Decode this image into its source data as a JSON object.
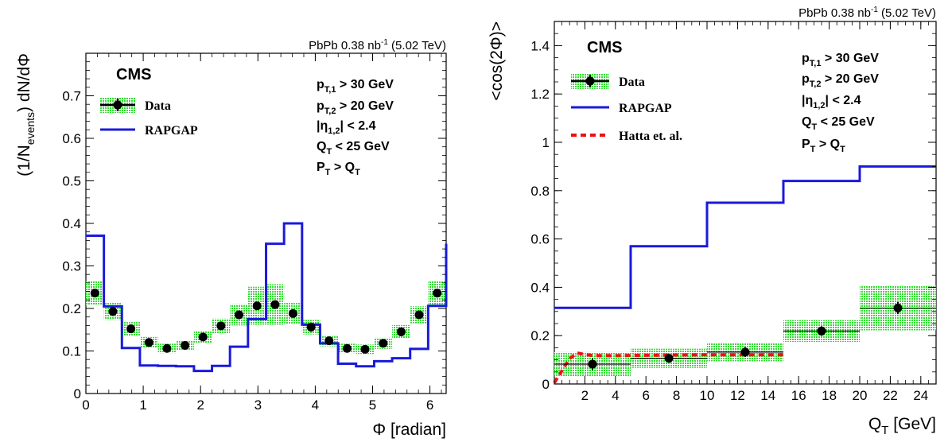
{
  "colors": {
    "data": "#000000",
    "band": "#33dd33",
    "rapgap": "#1a1adb",
    "hatta": "#ee1111"
  },
  "chart_data": [
    {
      "type": "line",
      "title": "PbPb 0.38 nb⁻¹ (5.02 TeV)",
      "label_experiment": "CMS",
      "xlabel": "Φ [radian]",
      "ylabel": "(1/N_events) dN/dΦ",
      "xlim": [
        0,
        6.283
      ],
      "ylim": [
        0,
        0.8
      ],
      "xticks": [
        "0",
        "1",
        "2",
        "3",
        "4",
        "5",
        "6"
      ],
      "yticks": [
        "0",
        "0.1",
        "0.2",
        "0.3",
        "0.4",
        "0.5",
        "0.6",
        "0.7"
      ],
      "cuts": [
        "p_T,1 > 30 GeV",
        "p_T,2 > 20 GeV",
        "|η_1,2| < 2.4",
        "Q_T < 25 GeV",
        "P_T > Q_T"
      ],
      "legend": [
        {
          "name": "Data",
          "style": "points-with-band"
        },
        {
          "name": "RAPGAP",
          "style": "blue-line"
        }
      ],
      "data": {
        "x": [
          0.157,
          0.471,
          0.785,
          1.1,
          1.414,
          1.728,
          2.042,
          2.356,
          2.67,
          2.985,
          3.299,
          3.613,
          3.927,
          4.241,
          4.555,
          4.869,
          5.184,
          5.498,
          5.812,
          6.126
        ],
        "y": [
          0.236,
          0.193,
          0.152,
          0.12,
          0.106,
          0.113,
          0.133,
          0.159,
          0.185,
          0.206,
          0.209,
          0.188,
          0.156,
          0.124,
          0.106,
          0.104,
          0.118,
          0.145,
          0.185,
          0.236
        ],
        "band": [
          0.028,
          0.02,
          0.016,
          0.013,
          0.011,
          0.012,
          0.014,
          0.017,
          0.025,
          0.045,
          0.048,
          0.025,
          0.017,
          0.013,
          0.011,
          0.011,
          0.013,
          0.016,
          0.02,
          0.028
        ]
      },
      "rapgap": {
        "edges": [
          0,
          0.314,
          0.628,
          0.942,
          1.257,
          1.571,
          1.885,
          2.199,
          2.513,
          2.827,
          3.142,
          3.456,
          3.77,
          4.084,
          4.398,
          4.712,
          5.027,
          5.341,
          5.655,
          5.969,
          6.283
        ],
        "values": [
          0.371,
          0.205,
          0.107,
          0.066,
          0.065,
          0.064,
          0.053,
          0.065,
          0.11,
          0.175,
          0.352,
          0.4,
          0.162,
          0.118,
          0.07,
          0.064,
          0.076,
          0.083,
          0.105,
          0.206,
          0.352
        ]
      }
    },
    {
      "type": "line",
      "title": "PbPb 0.38 nb⁻¹ (5.02 TeV)",
      "label_experiment": "CMS",
      "xlabel": "Q_T [GeV]",
      "ylabel": "<cos(2Φ)>",
      "xlim": [
        0,
        25
      ],
      "ylim": [
        0,
        1.5
      ],
      "xticks": [
        "2",
        "4",
        "6",
        "8",
        "10",
        "12",
        "14",
        "16",
        "18",
        "20",
        "22",
        "24"
      ],
      "yticks": [
        "0",
        "0.2",
        "0.4",
        "0.6",
        "0.8",
        "1",
        "1.2",
        "1.4"
      ],
      "cuts": [
        "p_T,1 > 30 GeV",
        "p_T,2 > 20 GeV",
        "|η_1,2| < 2.4",
        "Q_T < 25 GeV",
        "P_T > Q_T"
      ],
      "legend": [
        {
          "name": "Data",
          "style": "points-with-band"
        },
        {
          "name": "RAPGAP",
          "style": "blue-line"
        },
        {
          "name": "Hatta et. al.",
          "style": "red-dashed"
        }
      ],
      "data": {
        "x": [
          2.5,
          7.5,
          12.5,
          17.5,
          22.5
        ],
        "y": [
          0.082,
          0.106,
          0.132,
          0.219,
          0.314
        ],
        "xerr": [
          2.5,
          2.5,
          2.5,
          2.5,
          2.5
        ],
        "yerr": [
          0.025,
          0.015,
          0.02,
          0.02,
          0.025
        ],
        "band": [
          0.05,
          0.04,
          0.038,
          0.045,
          0.092
        ]
      },
      "rapgap": {
        "edges": [
          0,
          5,
          10,
          15,
          20,
          25
        ],
        "values": [
          0.315,
          0.57,
          0.75,
          0.84,
          0.9
        ]
      },
      "hatta": {
        "x": [
          0,
          0.5,
          1,
          1.5,
          2,
          2.5,
          3,
          4,
          5,
          6,
          8,
          10,
          12,
          15
        ],
        "y": [
          0.005,
          0.055,
          0.105,
          0.128,
          0.122,
          0.118,
          0.117,
          0.117,
          0.118,
          0.119,
          0.12,
          0.121,
          0.121,
          0.121
        ]
      }
    }
  ]
}
